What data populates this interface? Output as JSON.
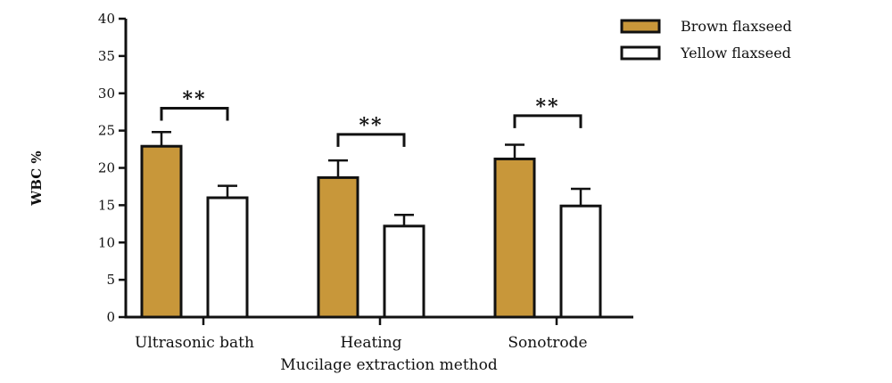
{
  "chart_data": {
    "type": "bar",
    "title": "",
    "xlabel": "Mucilage extraction method",
    "ylabel": "WBC %",
    "ylim": [
      0,
      40
    ],
    "yticks": [
      0,
      5,
      10,
      15,
      20,
      25,
      30,
      35,
      40
    ],
    "categories": [
      "Ultrasonic bath",
      "Heating",
      "Sonotrode"
    ],
    "series": [
      {
        "name": "Brown flaxseed",
        "values": [
          22.9,
          18.7,
          21.2
        ],
        "errors": [
          1.9,
          2.3,
          1.9
        ],
        "color": "#C8973A"
      },
      {
        "name": "Yellow flaxseed",
        "values": [
          16.0,
          12.2,
          14.9
        ],
        "errors": [
          1.6,
          1.5,
          2.3
        ],
        "color": "#FFFFFF"
      }
    ],
    "significance": [
      {
        "category": "Ultrasonic bath",
        "label": "**",
        "y": 28
      },
      {
        "category": "Heating",
        "label": "**",
        "y": 24.5
      },
      {
        "category": "Sonotrode",
        "label": "**",
        "y": 27
      }
    ],
    "legend_position": "top-right",
    "grid": false
  }
}
